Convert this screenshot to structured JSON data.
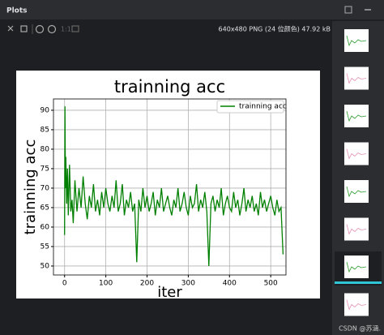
{
  "panel_title": "Plots",
  "zoom_label": "1:1",
  "image_info": "640x480 PNG (24 位颜色) 47.92 kB",
  "watermark": "CSDN @苏涵.",
  "chart_data": {
    "type": "line",
    "title": "trainning acc",
    "x_label": "iter",
    "y_label": "trainning acc",
    "x": [
      0,
      1,
      2,
      3,
      5,
      7,
      9,
      12,
      15,
      18,
      21,
      25,
      30,
      35,
      40,
      45,
      50,
      55,
      60,
      65,
      70,
      75,
      80,
      85,
      90,
      95,
      100,
      105,
      110,
      115,
      120,
      125,
      130,
      135,
      140,
      145,
      150,
      155,
      160,
      165,
      170,
      175,
      180,
      185,
      190,
      195,
      200,
      205,
      210,
      215,
      220,
      225,
      230,
      235,
      240,
      245,
      250,
      255,
      260,
      265,
      270,
      275,
      280,
      285,
      290,
      295,
      300,
      305,
      310,
      315,
      320,
      325,
      330,
      335,
      340,
      345,
      350,
      355,
      360,
      365,
      370,
      375,
      380,
      385,
      390,
      395,
      400,
      405,
      410,
      415,
      420,
      425,
      430,
      435,
      440,
      445,
      450,
      455,
      460,
      465,
      470,
      475,
      480,
      485,
      490,
      495,
      500,
      505,
      510,
      515,
      520,
      525,
      530
    ],
    "series": [
      {
        "name": "trainning acc",
        "color": "#008000",
        "values": [
          58,
          91,
          70,
          78,
          66,
          75,
          63,
          76,
          64,
          67,
          61,
          72,
          64,
          70,
          65,
          73,
          66,
          62,
          68,
          65,
          71,
          64,
          67,
          63,
          69,
          65,
          70,
          66,
          64,
          68,
          65,
          72,
          64,
          66,
          71,
          63,
          67,
          65,
          69,
          64,
          66,
          51,
          67,
          64,
          70,
          65,
          68,
          64,
          66,
          69,
          63,
          67,
          65,
          70,
          64,
          66,
          68,
          65,
          63,
          67,
          65,
          70,
          64,
          66,
          69,
          65,
          63,
          68,
          65,
          66,
          71,
          64,
          67,
          65,
          69,
          64,
          50,
          66,
          68,
          64,
          67,
          65,
          70,
          63,
          66,
          68,
          65,
          64,
          69,
          65,
          67,
          63,
          66,
          70,
          64,
          67,
          65,
          68,
          64,
          66,
          63,
          69,
          65,
          67,
          64,
          66,
          68,
          65,
          63,
          67,
          64,
          65,
          53
        ]
      }
    ],
    "xlim": [
      -27,
      537
    ],
    "ylim": [
      47.7,
      92.9
    ],
    "xticks": [
      0,
      100,
      200,
      300,
      400,
      500
    ],
    "yticks": [
      50,
      55,
      60,
      65,
      70,
      75,
      80,
      85,
      90
    ],
    "grid": true,
    "legend": "upper right"
  }
}
